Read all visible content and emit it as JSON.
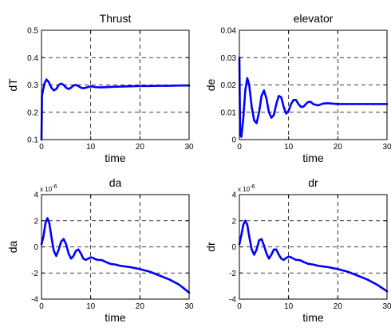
{
  "colors": {
    "series": "#0000ff",
    "axis": "#000000",
    "grid": "#000000",
    "background": "#ffffff"
  },
  "chart_data": [
    {
      "type": "line",
      "title": "Thrust",
      "xlabel": "time",
      "ylabel": "dT",
      "xlim": [
        0,
        30
      ],
      "ylim": [
        0.1,
        0.5
      ],
      "xticks": [
        0,
        10,
        20,
        30
      ],
      "xtick_labels": [
        "0",
        "10",
        "20",
        "30"
      ],
      "yticks": [
        0.1,
        0.2,
        0.3,
        0.4,
        0.5
      ],
      "ytick_labels": [
        "0.1",
        "0.2",
        "0.3",
        "0.4",
        "0.5"
      ],
      "exponent_label": "",
      "grid": true,
      "series": [
        {
          "x": [
            0,
            0.1,
            0.3,
            0.6,
            1.0,
            1.5,
            2.0,
            2.5,
            3.0,
            3.5,
            4.0,
            4.5,
            5.0,
            5.5,
            6.0,
            6.5,
            7.0,
            7.5,
            8.0,
            8.5,
            9.0,
            10.0,
            11.0,
            12.0,
            14.0,
            16.0,
            18.0,
            20.0,
            22.0,
            24.0,
            26.0,
            28.0,
            30.0
          ],
          "y": [
            0.1,
            0.26,
            0.28,
            0.305,
            0.32,
            0.31,
            0.29,
            0.28,
            0.285,
            0.3,
            0.305,
            0.3,
            0.29,
            0.285,
            0.29,
            0.298,
            0.3,
            0.296,
            0.29,
            0.288,
            0.29,
            0.295,
            0.292,
            0.291,
            0.293,
            0.294,
            0.295,
            0.296,
            0.296,
            0.297,
            0.297,
            0.298,
            0.298
          ]
        }
      ]
    },
    {
      "type": "line",
      "title": "elevator",
      "xlabel": "time",
      "ylabel": "de",
      "xlim": [
        0,
        30
      ],
      "ylim": [
        0,
        0.04
      ],
      "xticks": [
        0,
        10,
        20,
        30
      ],
      "xtick_labels": [
        "0",
        "10",
        "20",
        "30"
      ],
      "yticks": [
        0,
        0.01,
        0.02,
        0.03,
        0.04
      ],
      "ytick_labels": [
        "0",
        "0.01",
        "0.02",
        "0.03",
        "0.04"
      ],
      "exponent_label": "",
      "grid": true,
      "series": [
        {
          "x": [
            0,
            0.15,
            0.4,
            0.8,
            1.2,
            1.6,
            2.0,
            2.5,
            3.0,
            3.5,
            4.0,
            4.5,
            5.0,
            5.5,
            6.0,
            6.5,
            7.0,
            7.5,
            8.0,
            8.5,
            9.0,
            9.5,
            10.0,
            10.5,
            11.0,
            11.5,
            12.0,
            12.5,
            13.0,
            13.5,
            14.0,
            14.5,
            15.0,
            16.0,
            17.0,
            18.0,
            20.0,
            22.0,
            24.0,
            26.0,
            28.0,
            30.0
          ],
          "y": [
            0.03,
            0.002,
            0.001,
            0.008,
            0.018,
            0.0225,
            0.02,
            0.012,
            0.007,
            0.006,
            0.01,
            0.016,
            0.018,
            0.015,
            0.01,
            0.008,
            0.009,
            0.013,
            0.016,
            0.0155,
            0.012,
            0.0095,
            0.0105,
            0.013,
            0.0145,
            0.0145,
            0.013,
            0.012,
            0.012,
            0.013,
            0.0138,
            0.0138,
            0.013,
            0.0125,
            0.0132,
            0.0133,
            0.013,
            0.013,
            0.013,
            0.013,
            0.013,
            0.013
          ]
        }
      ]
    },
    {
      "type": "line",
      "title": "da",
      "xlabel": "time",
      "ylabel": "da",
      "xlim": [
        0,
        30
      ],
      "ylim": [
        -4,
        4
      ],
      "xticks": [
        0,
        10,
        20,
        30
      ],
      "xtick_labels": [
        "0",
        "10",
        "20",
        "30"
      ],
      "yticks": [
        -4,
        -2,
        0,
        2,
        4
      ],
      "ytick_labels": [
        "-4",
        "-2",
        "0",
        "2",
        "4"
      ],
      "exponent_label": "x 10",
      "exponent_power": "-6",
      "grid": true,
      "series": [
        {
          "x": [
            0,
            0.4,
            0.8,
            1.2,
            1.6,
            2.0,
            2.5,
            3.0,
            3.5,
            4.0,
            4.5,
            5.0,
            5.5,
            6.0,
            6.5,
            7.0,
            7.5,
            8.0,
            8.5,
            9.0,
            9.5,
            10.0,
            10.5,
            11.0,
            11.5,
            12.0,
            12.5,
            13.0,
            14.0,
            15.0,
            16.0,
            17.0,
            18.0,
            20.0,
            22.0,
            24.0,
            26.0,
            28.0,
            30.0
          ],
          "y": [
            0.2,
            0.8,
            1.8,
            2.2,
            1.8,
            0.8,
            -0.3,
            -0.7,
            -0.2,
            0.4,
            0.6,
            0.2,
            -0.5,
            -0.9,
            -0.7,
            -0.3,
            -0.2,
            -0.5,
            -0.9,
            -1.0,
            -0.9,
            -0.8,
            -0.85,
            -0.95,
            -1.0,
            -1.0,
            -1.05,
            -1.15,
            -1.3,
            -1.35,
            -1.45,
            -1.5,
            -1.55,
            -1.7,
            -1.9,
            -2.2,
            -2.5,
            -2.9,
            -3.5
          ]
        }
      ]
    },
    {
      "type": "line",
      "title": "dr",
      "xlabel": "time",
      "ylabel": "dr",
      "xlim": [
        0,
        30
      ],
      "ylim": [
        -4,
        4
      ],
      "xticks": [
        0,
        10,
        20,
        30
      ],
      "xtick_labels": [
        "0",
        "10",
        "20",
        "30"
      ],
      "yticks": [
        -4,
        -2,
        0,
        2,
        4
      ],
      "ytick_labels": [
        "-4",
        "-2",
        "0",
        "2",
        "4"
      ],
      "exponent_label": "x 10",
      "exponent_power": "-6",
      "grid": true,
      "series": [
        {
          "x": [
            0,
            0.4,
            0.8,
            1.2,
            1.6,
            2.0,
            2.5,
            3.0,
            3.5,
            4.0,
            4.5,
            5.0,
            5.5,
            6.0,
            6.5,
            7.0,
            7.5,
            8.0,
            8.5,
            9.0,
            9.5,
            10.0,
            10.5,
            11.0,
            11.5,
            12.0,
            12.5,
            13.0,
            14.0,
            15.0,
            16.0,
            17.0,
            18.0,
            20.0,
            22.0,
            24.0,
            26.0,
            28.0,
            30.0
          ],
          "y": [
            0.2,
            0.9,
            1.7,
            2.0,
            1.7,
            0.8,
            -0.2,
            -0.6,
            -0.2,
            0.5,
            0.6,
            0.1,
            -0.5,
            -0.9,
            -0.6,
            -0.2,
            -0.2,
            -0.6,
            -0.9,
            -1.0,
            -0.85,
            -0.75,
            -0.8,
            -0.9,
            -1.0,
            -1.0,
            -1.05,
            -1.15,
            -1.3,
            -1.35,
            -1.45,
            -1.5,
            -1.55,
            -1.7,
            -1.9,
            -2.2,
            -2.5,
            -2.9,
            -3.4
          ]
        }
      ]
    }
  ]
}
